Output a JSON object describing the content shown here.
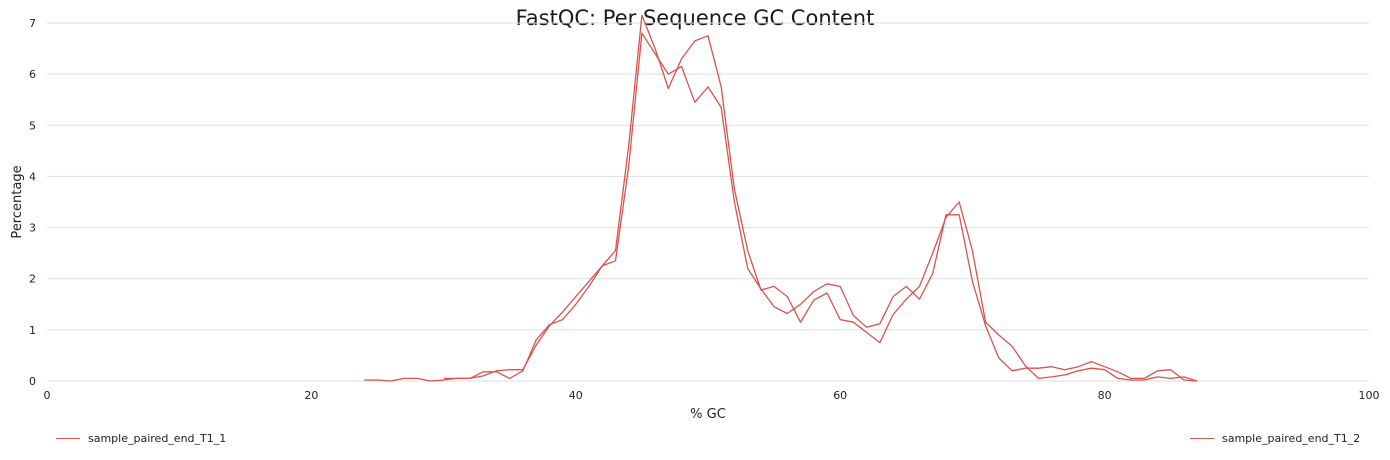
{
  "chart_data": {
    "type": "line",
    "title": "FastQC: Per Sequence GC Content",
    "xlabel": "% GC",
    "ylabel": "Percentage",
    "xlim": [
      0,
      100
    ],
    "ylim": [
      0,
      7
    ],
    "x_ticks": [
      0,
      20,
      40,
      60,
      80,
      100
    ],
    "y_ticks": [
      0,
      1,
      2,
      3,
      4,
      5,
      6,
      7
    ],
    "grid": "horizontal",
    "legend_position": "bottom",
    "line_color": "#d9534f",
    "series": [
      {
        "name": "sample_paired_end_T1_1",
        "x": [
          24,
          25,
          26,
          27,
          28,
          29,
          30,
          31,
          32,
          33,
          34,
          35,
          36,
          37,
          38,
          39,
          40,
          41,
          42,
          43,
          44,
          45,
          46,
          47,
          48,
          49,
          50,
          51,
          52,
          53,
          54,
          55,
          56,
          57,
          58,
          59,
          60,
          61,
          62,
          63,
          64,
          65,
          66,
          67,
          68,
          69,
          70,
          71,
          72,
          73,
          74,
          75,
          76,
          77,
          78,
          79,
          80,
          81,
          82,
          83,
          84,
          85,
          86,
          87
        ],
        "values": [
          0.02,
          0.02,
          0.0,
          0.05,
          0.05,
          0.0,
          0.02,
          0.05,
          0.05,
          0.1,
          0.2,
          0.22,
          0.22,
          0.7,
          1.08,
          1.35,
          1.65,
          1.95,
          2.25,
          2.35,
          4.2,
          6.8,
          6.4,
          6.0,
          6.15,
          5.45,
          5.75,
          5.35,
          3.5,
          2.2,
          1.8,
          1.45,
          1.32,
          1.5,
          1.75,
          1.9,
          1.85,
          1.28,
          1.05,
          1.12,
          1.65,
          1.85,
          1.6,
          2.1,
          3.25,
          3.25,
          1.95,
          1.08,
          0.45,
          0.2,
          0.25,
          0.25,
          0.28,
          0.22,
          0.28,
          0.38,
          0.28,
          0.18,
          0.05,
          0.05,
          0.2,
          0.22,
          0.02,
          0.0
        ]
      },
      {
        "name": "sample_paired_end_T1_2",
        "x": [
          30,
          31,
          32,
          33,
          34,
          35,
          36,
          37,
          38,
          39,
          40,
          41,
          42,
          43,
          44,
          45,
          46,
          47,
          48,
          49,
          50,
          51,
          52,
          53,
          54,
          55,
          56,
          57,
          58,
          59,
          60,
          61,
          62,
          63,
          64,
          65,
          66,
          67,
          68,
          69,
          70,
          71,
          72,
          73,
          74,
          75,
          76,
          77,
          78,
          79,
          80,
          81,
          82,
          83,
          84,
          85,
          86,
          87
        ],
        "values": [
          0.05,
          0.05,
          0.05,
          0.18,
          0.18,
          0.05,
          0.2,
          0.8,
          1.1,
          1.2,
          1.5,
          1.85,
          2.25,
          2.55,
          4.6,
          7.15,
          6.5,
          5.72,
          6.3,
          6.65,
          6.75,
          5.75,
          3.75,
          2.55,
          1.78,
          1.85,
          1.65,
          1.15,
          1.58,
          1.72,
          1.2,
          1.15,
          0.95,
          0.75,
          1.3,
          1.6,
          1.85,
          2.5,
          3.2,
          3.5,
          2.55,
          1.15,
          0.9,
          0.68,
          0.3,
          0.05,
          0.08,
          0.12,
          0.2,
          0.25,
          0.22,
          0.05,
          0.02,
          0.02,
          0.08,
          0.05,
          0.08,
          0.0
        ]
      }
    ]
  }
}
